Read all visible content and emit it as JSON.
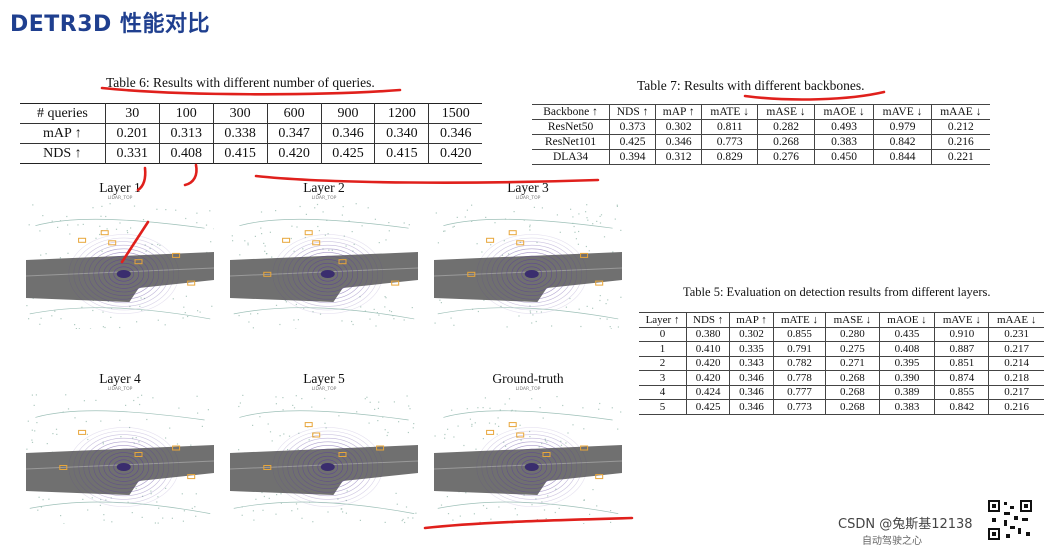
{
  "slide": {
    "title": "DETR3D 性能对比"
  },
  "table6": {
    "caption": "Table 6: Results with different number of queries.",
    "header": [
      "# queries",
      "30",
      "100",
      "300",
      "600",
      "900",
      "1200",
      "1500"
    ],
    "rows": [
      [
        "mAP ↑",
        "0.201",
        "0.313",
        "0.338",
        "0.347",
        "0.346",
        "0.340",
        "0.346"
      ],
      [
        "NDS ↑",
        "0.331",
        "0.408",
        "0.415",
        "0.420",
        "0.425",
        "0.415",
        "0.420"
      ]
    ]
  },
  "table7": {
    "caption": "Table 7: Results with different backbones.",
    "header": [
      "Backbone ↑",
      "NDS ↑",
      "mAP ↑",
      "mATE ↓",
      "mASE ↓",
      "mAOE ↓",
      "mAVE ↓",
      "mAAE ↓"
    ],
    "rows": [
      [
        "ResNet50",
        "0.373",
        "0.302",
        "0.811",
        "0.282",
        "0.493",
        "0.979",
        "0.212"
      ],
      [
        "ResNet101",
        "0.425",
        "0.346",
        "0.773",
        "0.268",
        "0.383",
        "0.842",
        "0.216"
      ],
      [
        "DLA34",
        "0.394",
        "0.312",
        "0.829",
        "0.276",
        "0.450",
        "0.844",
        "0.221"
      ]
    ]
  },
  "table5": {
    "caption": "Table 5: Evaluation on detection results from different layers.",
    "header": [
      "Layer ↑",
      "NDS ↑",
      "mAP ↑",
      "mATE ↓",
      "mASE ↓",
      "mAOE ↓",
      "mAVE ↓",
      "mAAE ↓"
    ],
    "rows": [
      [
        "0",
        "0.380",
        "0.302",
        "0.855",
        "0.280",
        "0.435",
        "0.910",
        "0.231"
      ],
      [
        "1",
        "0.410",
        "0.335",
        "0.791",
        "0.275",
        "0.408",
        "0.887",
        "0.217"
      ],
      [
        "2",
        "0.420",
        "0.343",
        "0.782",
        "0.271",
        "0.395",
        "0.851",
        "0.214"
      ],
      [
        "3",
        "0.420",
        "0.346",
        "0.778",
        "0.268",
        "0.390",
        "0.874",
        "0.218"
      ],
      [
        "4",
        "0.424",
        "0.346",
        "0.777",
        "0.268",
        "0.389",
        "0.855",
        "0.217"
      ],
      [
        "5",
        "0.425",
        "0.346",
        "0.773",
        "0.268",
        "0.383",
        "0.842",
        "0.216"
      ]
    ]
  },
  "figure": {
    "panels": [
      {
        "title": "Layer 1",
        "sub": "LIDAR_TOP"
      },
      {
        "title": "Layer 2",
        "sub": "LIDAR_TOP"
      },
      {
        "title": "Layer 3",
        "sub": "LIDAR_TOP"
      },
      {
        "title": "Layer 4",
        "sub": "LIDAR_TOP"
      },
      {
        "title": "Layer 5",
        "sub": "LIDAR_TOP"
      },
      {
        "title": "Ground-truth",
        "sub": "LIDAR_TOP"
      }
    ]
  },
  "footer": {
    "watermark": "CSDN @兔斯基12138",
    "partial_text": "自动驾驶之心"
  },
  "colors": {
    "title": "#1f3f8f",
    "annotation": "#e0201c",
    "road": "#707070",
    "box": "#e8a63a",
    "rings": "#5a3f9a"
  }
}
